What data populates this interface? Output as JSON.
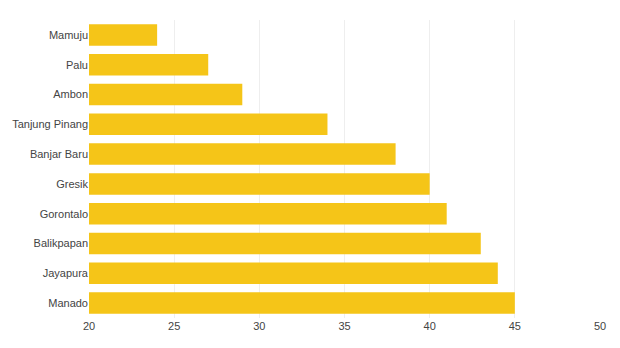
{
  "chart_data": {
    "type": "bar",
    "orientation": "horizontal",
    "categories": [
      "Mamuju",
      "Palu",
      "Ambon",
      "Tanjung Pinang",
      "Banjar Baru",
      "Gresik",
      "Gorontalo",
      "Balikpapan",
      "Jayapura",
      "Manado"
    ],
    "values": [
      24,
      27,
      29,
      34,
      38,
      40,
      41,
      43,
      44,
      45
    ],
    "color": "#F5C518",
    "xlim": [
      20,
      50
    ],
    "xticks": [
      20,
      25,
      30,
      35,
      40,
      45,
      50
    ],
    "grid": true
  }
}
